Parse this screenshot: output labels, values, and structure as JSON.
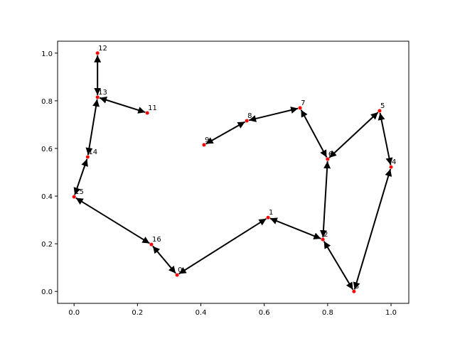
{
  "chart_data": {
    "type": "graph",
    "points": [
      {
        "label": "0",
        "x": 0.325,
        "y": 0.069
      },
      {
        "label": "1",
        "x": 0.612,
        "y": 0.31
      },
      {
        "label": "2",
        "x": 0.785,
        "y": 0.218
      },
      {
        "label": "3",
        "x": 0.883,
        "y": 0.0
      },
      {
        "label": "4",
        "x": 1.0,
        "y": 0.522
      },
      {
        "label": "5",
        "x": 0.964,
        "y": 0.758
      },
      {
        "label": "6",
        "x": 0.8,
        "y": 0.555
      },
      {
        "label": "7",
        "x": 0.713,
        "y": 0.77
      },
      {
        "label": "8",
        "x": 0.545,
        "y": 0.716
      },
      {
        "label": "9",
        "x": 0.41,
        "y": 0.615
      },
      {
        "label": "11",
        "x": 0.231,
        "y": 0.749
      },
      {
        "label": "12",
        "x": 0.074,
        "y": 1.0
      },
      {
        "label": "13",
        "x": 0.074,
        "y": 0.815
      },
      {
        "label": "14",
        "x": 0.043,
        "y": 0.564
      },
      {
        "label": "15",
        "x": 0.0,
        "y": 0.397
      },
      {
        "label": "16",
        "x": 0.244,
        "y": 0.197
      }
    ],
    "edges": [
      [
        0,
        1
      ],
      [
        1,
        2
      ],
      [
        2,
        3
      ],
      [
        3,
        4
      ],
      [
        4,
        5
      ],
      [
        5,
        6
      ],
      [
        6,
        2
      ],
      [
        6,
        7
      ],
      [
        7,
        8
      ],
      [
        8,
        9
      ],
      [
        12,
        10
      ],
      [
        11,
        12
      ],
      [
        12,
        13
      ],
      [
        13,
        14
      ],
      [
        14,
        15
      ],
      [
        15,
        0
      ]
    ],
    "point_color": "#ff0000",
    "edge_color": "#000000",
    "xlim": [
      -0.052,
      1.056
    ],
    "ylim": [
      -0.05,
      1.05
    ],
    "xticks": [
      {
        "value": 0,
        "label": "0.0"
      },
      {
        "value": 0.2,
        "label": "0.2"
      },
      {
        "value": 0.4,
        "label": "0.4"
      },
      {
        "value": 0.6,
        "label": "0.6"
      },
      {
        "value": 0.8,
        "label": "0.8"
      },
      {
        "value": 1,
        "label": "1.0"
      }
    ],
    "yticks": [
      {
        "value": 0,
        "label": "0.0"
      },
      {
        "value": 0.2,
        "label": "0.2"
      },
      {
        "value": 0.4,
        "label": "0.4"
      },
      {
        "value": 0.6,
        "label": "0.6"
      },
      {
        "value": 0.8,
        "label": "0.8"
      },
      {
        "value": 1,
        "label": "1.0"
      }
    ]
  }
}
